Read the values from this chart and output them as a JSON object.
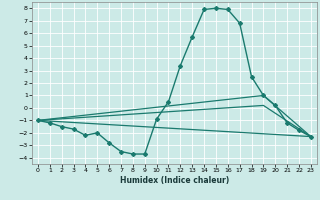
{
  "xlabel": "Humidex (Indice chaleur)",
  "bg_color": "#cceae7",
  "grid_color": "#ffffff",
  "line_color": "#1a7a6e",
  "xlim": [
    -0.5,
    23.5
  ],
  "ylim": [
    -4.5,
    8.5
  ],
  "xticks": [
    0,
    1,
    2,
    3,
    4,
    5,
    6,
    7,
    8,
    9,
    10,
    11,
    12,
    13,
    14,
    15,
    16,
    17,
    18,
    19,
    20,
    21,
    22,
    23
  ],
  "yticks": [
    -4,
    -3,
    -2,
    -1,
    0,
    1,
    2,
    3,
    4,
    5,
    6,
    7,
    8
  ],
  "series": [
    {
      "x": [
        0,
        1,
        2,
        3,
        4,
        5,
        6,
        7,
        8,
        9,
        10,
        11,
        12,
        13,
        14,
        15,
        16,
        17,
        18,
        19,
        20,
        21,
        22,
        23
      ],
      "y": [
        -1.0,
        -1.2,
        -1.5,
        -1.7,
        -2.2,
        -2.0,
        -2.8,
        -3.5,
        -3.7,
        -3.7,
        -0.9,
        0.5,
        3.4,
        5.7,
        7.9,
        8.0,
        7.9,
        6.8,
        2.5,
        1.0,
        0.2,
        -1.2,
        -1.8,
        -2.3
      ],
      "marker": "D",
      "markersize": 2.0,
      "linewidth": 1.0
    },
    {
      "x": [
        0,
        23
      ],
      "y": [
        -1.0,
        -2.3
      ],
      "marker": null,
      "markersize": 0,
      "linewidth": 0.9
    },
    {
      "x": [
        0,
        19,
        23
      ],
      "y": [
        -1.0,
        1.0,
        -2.3
      ],
      "marker": null,
      "markersize": 0,
      "linewidth": 0.9
    },
    {
      "x": [
        0,
        19,
        23
      ],
      "y": [
        -1.0,
        0.2,
        -2.3
      ],
      "marker": null,
      "markersize": 0,
      "linewidth": 0.9
    }
  ]
}
